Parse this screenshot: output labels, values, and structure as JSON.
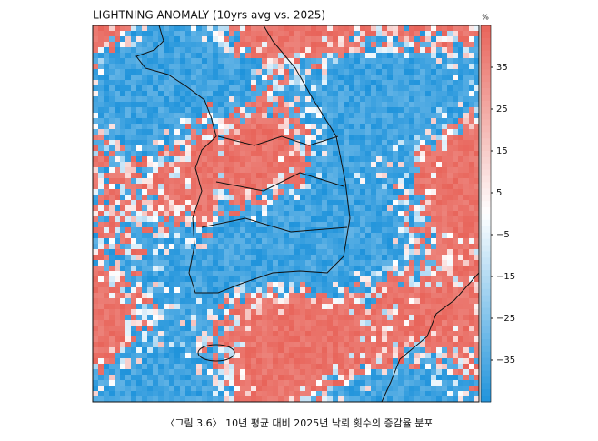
{
  "chart_data": {
    "type": "heatmap",
    "title": "LIGHTNING ANOMALY (10yrs avg vs. 2025)",
    "colorbar_label": "%",
    "clim": [
      -45,
      45
    ],
    "cticks": [
      35,
      25,
      15,
      5,
      {
        "value": -5,
        "label": "−5"
      },
      {
        "value": -15,
        "label": "−15"
      },
      {
        "value": -25,
        "label": "−25"
      },
      {
        "value": -35,
        "label": "−35"
      }
    ],
    "colors": [
      "#1f93db",
      "#ffffff",
      "#e8645a"
    ]
  },
  "caption": "〈그림 3.6〉 10년 평균 대비 2025년 낙뢰 횟수의 증감율 분포"
}
